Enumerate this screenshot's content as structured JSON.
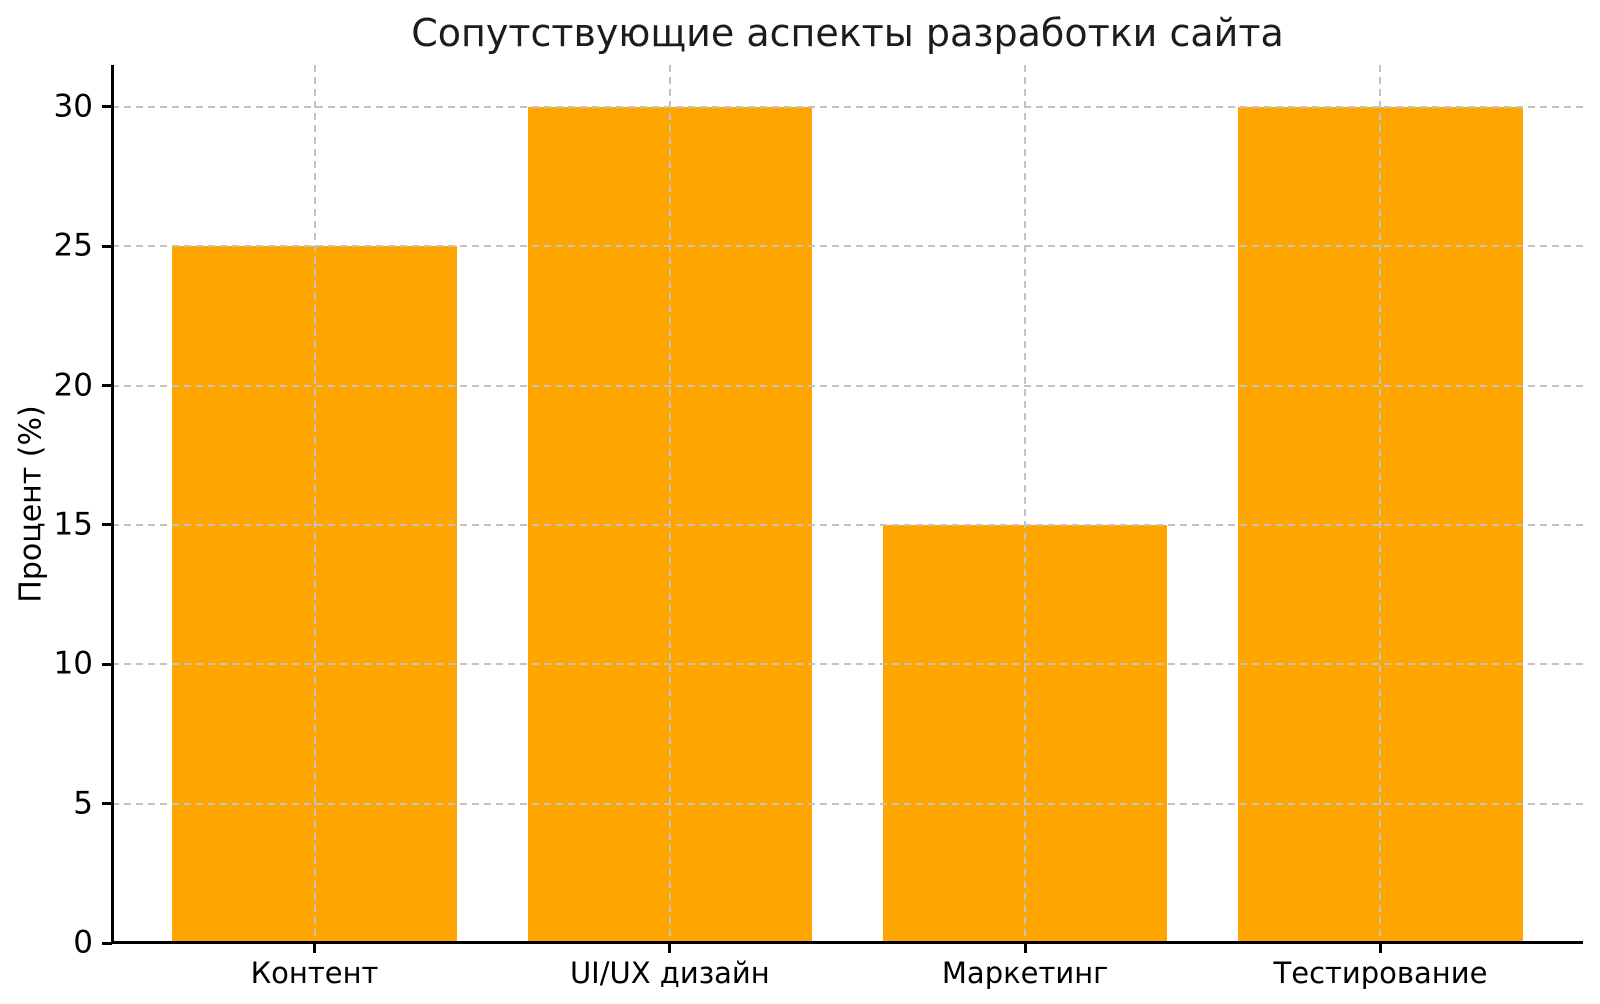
{
  "chart_data": {
    "type": "bar",
    "title": "Сопутствующие аспекты разработки сайта",
    "categories": [
      "Контент",
      "UI/UX дизайн",
      "Маркетинг",
      "Тестирование"
    ],
    "values": [
      25,
      30,
      15,
      30
    ],
    "xlabel": "",
    "ylabel": "Процент (%)",
    "ylim": [
      0,
      31.5
    ],
    "yticks": [
      0,
      5,
      10,
      15,
      20,
      25,
      30
    ],
    "bar_width_fraction": 0.8,
    "bar_color": "#FFA500",
    "grid": {
      "visible": true,
      "style": "dashed",
      "axes": "both",
      "color": "#C3C3C3",
      "above_bars": true
    },
    "axis_color": "#000000",
    "text_color": "#000000",
    "background": "#FFFFFF",
    "legend": null
  }
}
